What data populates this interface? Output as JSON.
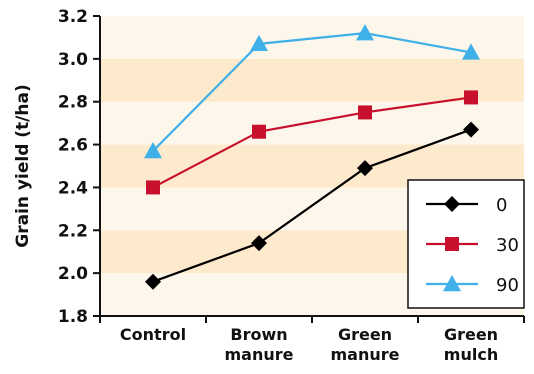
{
  "chart_data": {
    "type": "line",
    "title": "",
    "xlabel": "",
    "ylabel": "Grain yield (t/ha)",
    "ylim": [
      1.8,
      3.2
    ],
    "yticks": [
      "1.8",
      "2.0",
      "2.2",
      "2.4",
      "2.6",
      "2.8",
      "3.0",
      "3.2"
    ],
    "categories": [
      [
        "Control"
      ],
      [
        "Brown",
        "manure"
      ],
      [
        "Green",
        "manure"
      ],
      [
        "Green",
        "mulch"
      ]
    ],
    "series": [
      {
        "name": "0",
        "values": [
          1.96,
          2.14,
          2.49,
          2.67
        ],
        "color": "#000000",
        "marker": "diamond"
      },
      {
        "name": "30",
        "values": [
          2.4,
          2.66,
          2.75,
          2.82
        ],
        "color": "#c8102e",
        "marker": "square"
      },
      {
        "name": "90",
        "values": [
          2.57,
          3.07,
          3.12,
          3.03
        ],
        "color": "#3fb0e8",
        "marker": "triangle"
      }
    ],
    "background_bands": [
      "#fde9cc",
      "#fdf6ea"
    ],
    "legend_position": "bottom-right",
    "grid": false
  }
}
